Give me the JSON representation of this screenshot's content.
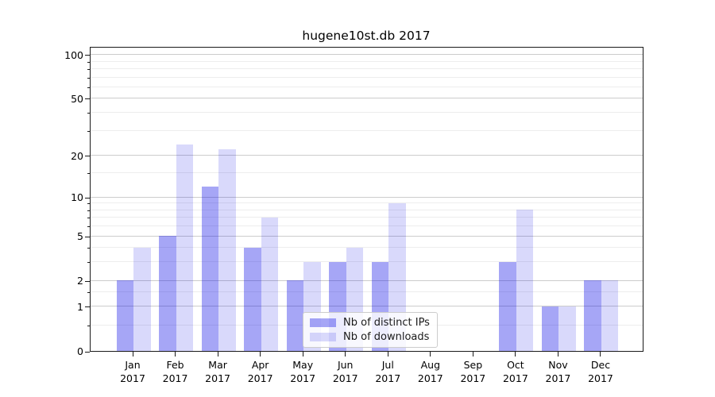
{
  "chart_data": {
    "type": "bar",
    "title": "hugene10st.db 2017",
    "categories": [
      "Jan 2017",
      "Feb 2017",
      "Mar 2017",
      "Apr 2017",
      "May 2017",
      "Jun 2017",
      "Jul 2017",
      "Aug 2017",
      "Sep 2017",
      "Oct 2017",
      "Nov 2017",
      "Dec 2017"
    ],
    "series": [
      {
        "name": "Nb of distinct IPs",
        "color": "rgba(0,0,230,0.35)",
        "values": [
          2,
          5,
          12,
          4,
          2,
          3,
          3,
          0,
          0,
          3,
          1,
          2
        ]
      },
      {
        "name": "Nb of downloads",
        "color": "rgba(0,0,230,0.15)",
        "values": [
          4,
          24,
          22,
          7,
          3,
          4,
          9,
          0,
          0,
          8,
          1,
          2
        ]
      }
    ],
    "xlabel": "",
    "ylabel": "",
    "yscale": "log1p",
    "ylim": [
      0,
      115
    ],
    "yticks_major": [
      0,
      1,
      2,
      5,
      10,
      20,
      50,
      100
    ],
    "yticks_minor": [
      0.5,
      1.5,
      3,
      4,
      6,
      7,
      8,
      9,
      15,
      30,
      40,
      60,
      70,
      80,
      90
    ],
    "grid": true,
    "legend_position": "lower center",
    "colors": {
      "grid_major": "#cccccc",
      "grid_minor": "#ededed",
      "spine": "#1a1a1a",
      "text": "#000000",
      "background": "#ffffff"
    }
  }
}
